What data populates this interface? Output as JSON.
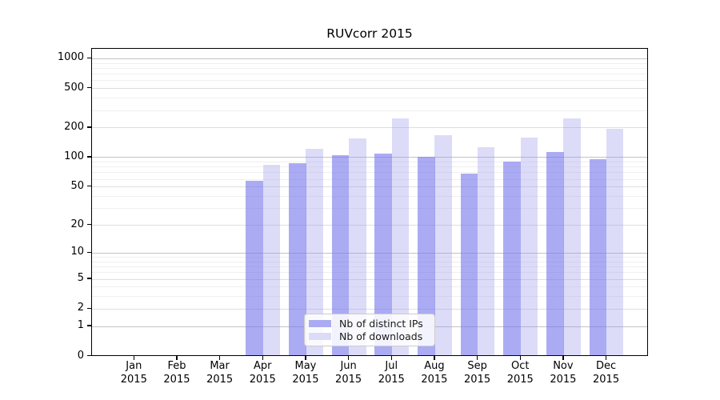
{
  "title": "RUVcorr 2015",
  "colors": {
    "axis": "#000000",
    "grid_major": "#c3c3c3",
    "grid_mid": "#dedede",
    "grid_minor": "#f0f0f0",
    "bar_dark": "#ababf4",
    "bar_light": "#dcdcf8",
    "bar_dark_fill": "rgba(120,120,238,0.62)",
    "bar_light_fill": "rgba(150,150,235,0.33)"
  },
  "legend": {
    "items": [
      {
        "label": "Nb of distinct IPs",
        "color": "#ababf4"
      },
      {
        "label": "Nb of downloads",
        "color": "#dcdcf8"
      }
    ]
  },
  "chart_data": {
    "type": "bar",
    "title": "RUVcorr 2015",
    "categories": [
      "Jan",
      "Feb",
      "Mar",
      "Apr",
      "May",
      "Jun",
      "Jul",
      "Aug",
      "Sep",
      "Oct",
      "Nov",
      "Dec"
    ],
    "year_label": "2015",
    "series": [
      {
        "name": "Nb of distinct IPs",
        "color": "#ababf4",
        "values": [
          0,
          0,
          0,
          56,
          84,
          101,
          106,
          98,
          66,
          87,
          110,
          92
        ]
      },
      {
        "name": "Nb of downloads",
        "color": "#dcdcf8",
        "values": [
          0,
          0,
          0,
          81,
          119,
          152,
          242,
          164,
          122,
          154,
          239,
          188
        ]
      }
    ],
    "yscale": "log1p",
    "yticks": [
      0,
      1,
      2,
      5,
      10,
      20,
      50,
      100,
      200,
      500,
      1000
    ],
    "ytick_mid": [
      2,
      5,
      20,
      50,
      200,
      500
    ],
    "ytick_major": [
      1,
      10,
      100,
      1000
    ],
    "ylim": [
      0,
      1272
    ],
    "xlabel": "",
    "ylabel": "",
    "grid": true,
    "legend_position": "lower-center"
  }
}
